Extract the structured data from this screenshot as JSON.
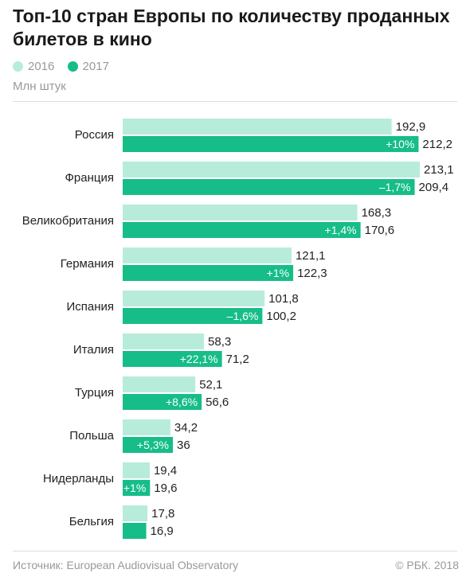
{
  "title": "Топ-10 стран Европы по количеству проданных билетов в кино",
  "unit_label": "Млн штук",
  "legend": [
    {
      "label": "2016",
      "color": "#b8ecda"
    },
    {
      "label": "2017",
      "color": "#16bd88"
    }
  ],
  "footer": {
    "source": "Источник: European Audiovisual Observatory",
    "copyright": "© РБК. 2018"
  },
  "chart_data": {
    "type": "bar",
    "orientation": "horizontal",
    "title": "Топ-10 стран Европы по количеству проданных билетов в кино",
    "categories": [
      "Россия",
      "Франция",
      "Великобритания",
      "Германия",
      "Испания",
      "Италия",
      "Турция",
      "Польша",
      "Нидерланды",
      "Бельгия"
    ],
    "series": [
      {
        "name": "2016",
        "color": "#b8ecda",
        "values": [
          192.9,
          213.1,
          168.3,
          121.1,
          101.8,
          58.3,
          52.1,
          34.2,
          19.4,
          17.8
        ],
        "labels": [
          "192,9",
          "213,1",
          "168,3",
          "121,1",
          "101,8",
          "58,3",
          "52,1",
          "34,2",
          "19,4",
          "17,8"
        ]
      },
      {
        "name": "2017",
        "color": "#16bd88",
        "values": [
          212.2,
          209.4,
          170.6,
          122.3,
          100.2,
          71.2,
          56.6,
          36.0,
          19.6,
          16.9
        ],
        "labels": [
          "212,2",
          "209,4",
          "170,6",
          "122,3",
          "100,2",
          "71,2",
          "56,6",
          "36",
          "19,6",
          "16,9"
        ]
      }
    ],
    "changes": [
      "+10%",
      "–1,7%",
      "+1,4%",
      "+1%",
      "–1,6%",
      "+22,1%",
      "+8,6%",
      "+5,3%",
      "+1%",
      ""
    ],
    "xlim": [
      0,
      213.1
    ],
    "grid": false,
    "legend_position": "top-left"
  }
}
